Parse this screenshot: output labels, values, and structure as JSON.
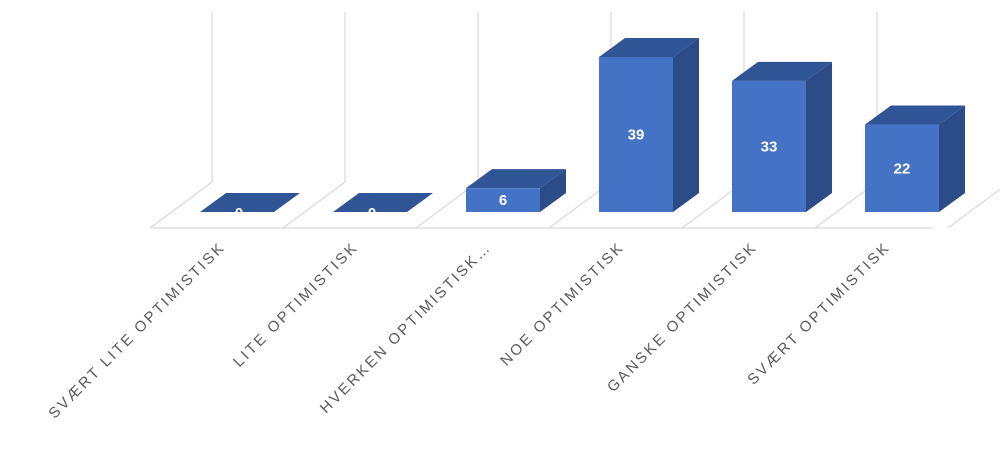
{
  "chart_data": {
    "type": "bar",
    "style": "3d-column",
    "categories": [
      "SVÆRT LITE OPTIMISTISK",
      "LITE OPTIMISTISK",
      "HVERKEN OPTIMISTISK…",
      "NOE OPTIMISTISK",
      "GANSKE OPTIMISTISK",
      "SVÆRT OPTIMISTISK"
    ],
    "values": [
      0,
      0,
      6,
      39,
      33,
      22
    ],
    "data_labels": [
      "0",
      "0",
      "6",
      "39",
      "33",
      "22"
    ],
    "title": "",
    "xlabel": "",
    "ylabel": "",
    "ylim": [
      0,
      40
    ],
    "grid": true,
    "legend": "none",
    "colors": {
      "bar_front": "#4472C4",
      "bar_top": "#2F5597",
      "bar_side": "#2B4C87",
      "grid": "#D9D9D9",
      "label": "#595959",
      "data_label": "#FFFFFF"
    }
  }
}
